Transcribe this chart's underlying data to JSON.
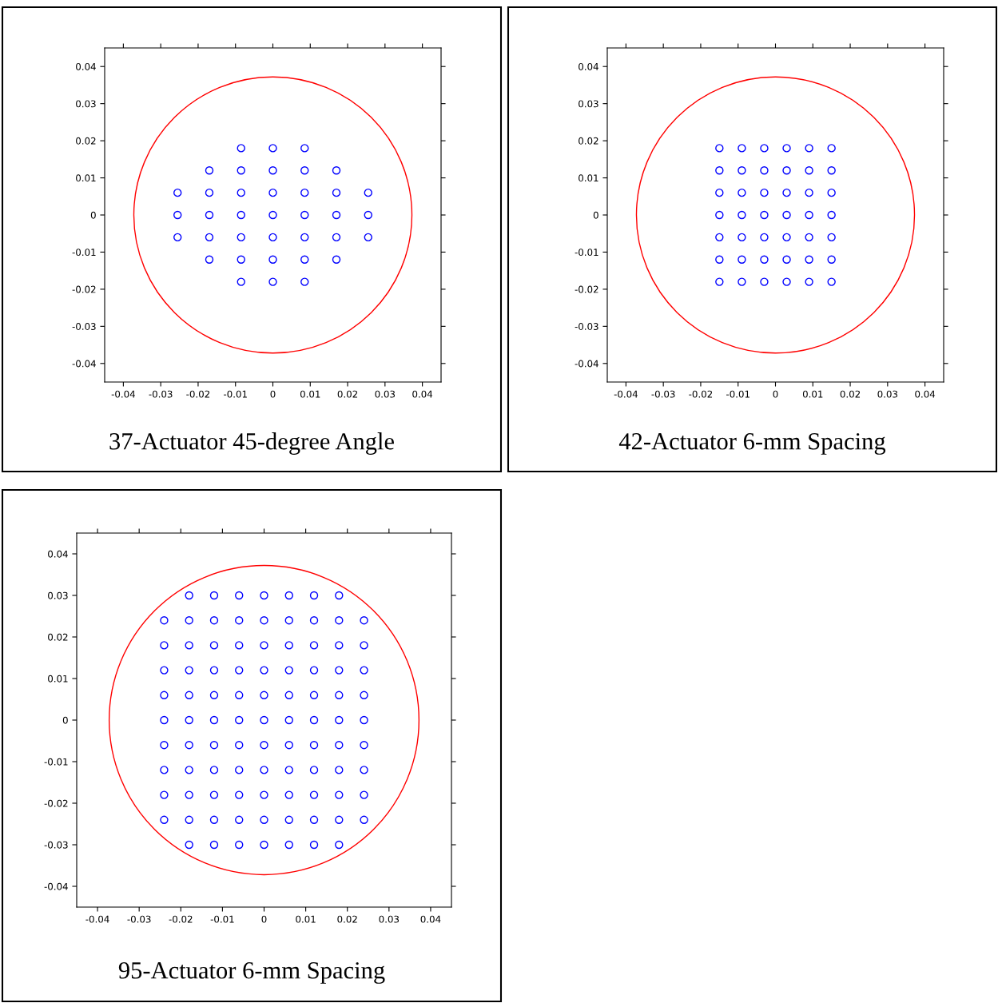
{
  "chart_data": [
    {
      "type": "scatter",
      "title": "37-Actuator 45-degree Angle",
      "xlim": [
        -0.045,
        0.045
      ],
      "ylim": [
        -0.045,
        0.045
      ],
      "xticks": [
        -0.04,
        -0.03,
        -0.02,
        -0.01,
        0,
        0.01,
        0.02,
        0.03,
        0.04
      ],
      "yticks": [
        -0.04,
        -0.03,
        -0.02,
        -0.01,
        0,
        0.01,
        0.02,
        0.03,
        0.04
      ],
      "grid": false,
      "series": [
        {
          "color": "#0000ff",
          "marker": "circle",
          "x": [
            -0.0085,
            0,
            0.0085,
            -0.017,
            -0.0085,
            0,
            0.0085,
            0.017,
            -0.0255,
            -0.017,
            -0.0085,
            0,
            0.0085,
            0.017,
            0.0255,
            -0.0255,
            -0.017,
            -0.0085,
            0,
            0.0085,
            0.017,
            0.0255,
            -0.0255,
            -0.017,
            -0.0085,
            0,
            0.0085,
            0.017,
            0.0255,
            -0.017,
            -0.0085,
            0,
            0.0085,
            0.017,
            -0.0085,
            0,
            0.0085
          ],
          "values": [
            0.018,
            0.018,
            0.018,
            0.012,
            0.012,
            0.012,
            0.012,
            0.012,
            0.006,
            0.006,
            0.006,
            0.006,
            0.006,
            0.006,
            0.006,
            0,
            0,
            0,
            0,
            0,
            0,
            0,
            -0.006,
            -0.006,
            -0.006,
            -0.006,
            -0.006,
            -0.006,
            -0.006,
            -0.012,
            -0.012,
            -0.012,
            -0.012,
            -0.012,
            -0.018,
            -0.018,
            -0.018
          ]
        }
      ]
    },
    {
      "type": "scatter",
      "title": "42-Actuator 6-mm Spacing",
      "xlim": [
        -0.045,
        0.045
      ],
      "ylim": [
        -0.045,
        0.045
      ],
      "xticks": [
        -0.04,
        -0.03,
        -0.02,
        -0.01,
        0,
        0.01,
        0.02,
        0.03,
        0.04
      ],
      "yticks": [
        -0.04,
        -0.03,
        -0.02,
        -0.01,
        0,
        0.01,
        0.02,
        0.03,
        0.04
      ],
      "grid": false,
      "series": [
        {
          "color": "#0000ff",
          "marker": "circle",
          "x": [
            -0.015,
            -0.009,
            -0.003,
            0.003,
            0.009,
            0.015,
            -0.015,
            -0.009,
            -0.003,
            0.003,
            0.009,
            0.015,
            -0.015,
            -0.009,
            -0.003,
            0.003,
            0.009,
            0.015,
            -0.015,
            -0.009,
            -0.003,
            0.003,
            0.009,
            0.015,
            -0.015,
            -0.009,
            -0.003,
            0.003,
            0.009,
            0.015,
            -0.015,
            -0.009,
            -0.003,
            0.003,
            0.009,
            0.015,
            -0.015,
            -0.009,
            -0.003,
            0.003,
            0.009,
            0.015
          ],
          "values": [
            0.018,
            0.018,
            0.018,
            0.018,
            0.018,
            0.018,
            0.012,
            0.012,
            0.012,
            0.012,
            0.012,
            0.012,
            0.006,
            0.006,
            0.006,
            0.006,
            0.006,
            0.006,
            0,
            0,
            0,
            0,
            0,
            0,
            -0.006,
            -0.006,
            -0.006,
            -0.006,
            -0.006,
            -0.006,
            -0.012,
            -0.012,
            -0.012,
            -0.012,
            -0.012,
            -0.012,
            -0.018,
            -0.018,
            -0.018,
            -0.018,
            -0.018,
            -0.018
          ]
        }
      ]
    },
    {
      "type": "scatter",
      "title": "95-Actuator 6-mm Spacing",
      "xlim": [
        -0.045,
        0.045
      ],
      "ylim": [
        -0.045,
        0.045
      ],
      "xticks": [
        -0.04,
        -0.03,
        -0.02,
        -0.01,
        0,
        0.01,
        0.02,
        0.03,
        0.04
      ],
      "yticks": [
        -0.04,
        -0.03,
        -0.02,
        -0.01,
        0,
        0.01,
        0.02,
        0.03,
        0.04
      ],
      "grid": false,
      "series": [
        {
          "color": "#0000ff",
          "marker": "circle",
          "x": [
            -0.018,
            -0.012,
            -0.006,
            0,
            0.006,
            0.012,
            0.018,
            -0.024,
            -0.018,
            -0.012,
            -0.006,
            0,
            0.006,
            0.012,
            0.018,
            0.024,
            -0.024,
            -0.018,
            -0.012,
            -0.006,
            0,
            0.006,
            0.012,
            0.018,
            0.024,
            -0.024,
            -0.018,
            -0.012,
            -0.006,
            0,
            0.006,
            0.012,
            0.018,
            0.024,
            -0.024,
            -0.018,
            -0.012,
            -0.006,
            0,
            0.006,
            0.012,
            0.018,
            0.024,
            -0.024,
            -0.018,
            -0.012,
            -0.006,
            0,
            0.006,
            0.012,
            0.018,
            0.024,
            -0.024,
            -0.018,
            -0.012,
            -0.006,
            0,
            0.006,
            0.012,
            0.018,
            0.024,
            -0.024,
            -0.018,
            -0.012,
            -0.006,
            0,
            0.006,
            0.012,
            0.018,
            0.024,
            -0.024,
            -0.018,
            -0.012,
            -0.006,
            0,
            0.006,
            0.012,
            0.018,
            0.024,
            -0.024,
            -0.018,
            -0.012,
            -0.006,
            0,
            0.006,
            0.012,
            0.018,
            0.024,
            -0.018,
            -0.012,
            -0.006,
            0,
            0.006,
            0.012,
            0.018
          ],
          "values": [
            0.03,
            0.03,
            0.03,
            0.03,
            0.03,
            0.03,
            0.03,
            0.024,
            0.024,
            0.024,
            0.024,
            0.024,
            0.024,
            0.024,
            0.024,
            0.024,
            0.018,
            0.018,
            0.018,
            0.018,
            0.018,
            0.018,
            0.018,
            0.018,
            0.018,
            0.012,
            0.012,
            0.012,
            0.012,
            0.012,
            0.012,
            0.012,
            0.012,
            0.012,
            0.006,
            0.006,
            0.006,
            0.006,
            0.006,
            0.006,
            0.006,
            0.006,
            0.006,
            0,
            0,
            0,
            0,
            0,
            0,
            0,
            0,
            0,
            -0.006,
            -0.006,
            -0.006,
            -0.006,
            -0.006,
            -0.006,
            -0.006,
            -0.006,
            -0.006,
            -0.012,
            -0.012,
            -0.012,
            -0.012,
            -0.012,
            -0.012,
            -0.012,
            -0.012,
            -0.012,
            -0.018,
            -0.018,
            -0.018,
            -0.018,
            -0.018,
            -0.018,
            -0.018,
            -0.018,
            -0.018,
            -0.024,
            -0.024,
            -0.024,
            -0.024,
            -0.024,
            -0.024,
            -0.024,
            -0.024,
            -0.024,
            -0.03,
            -0.03,
            -0.03,
            -0.03,
            -0.03,
            -0.03,
            -0.03
          ]
        }
      ]
    }
  ]
}
